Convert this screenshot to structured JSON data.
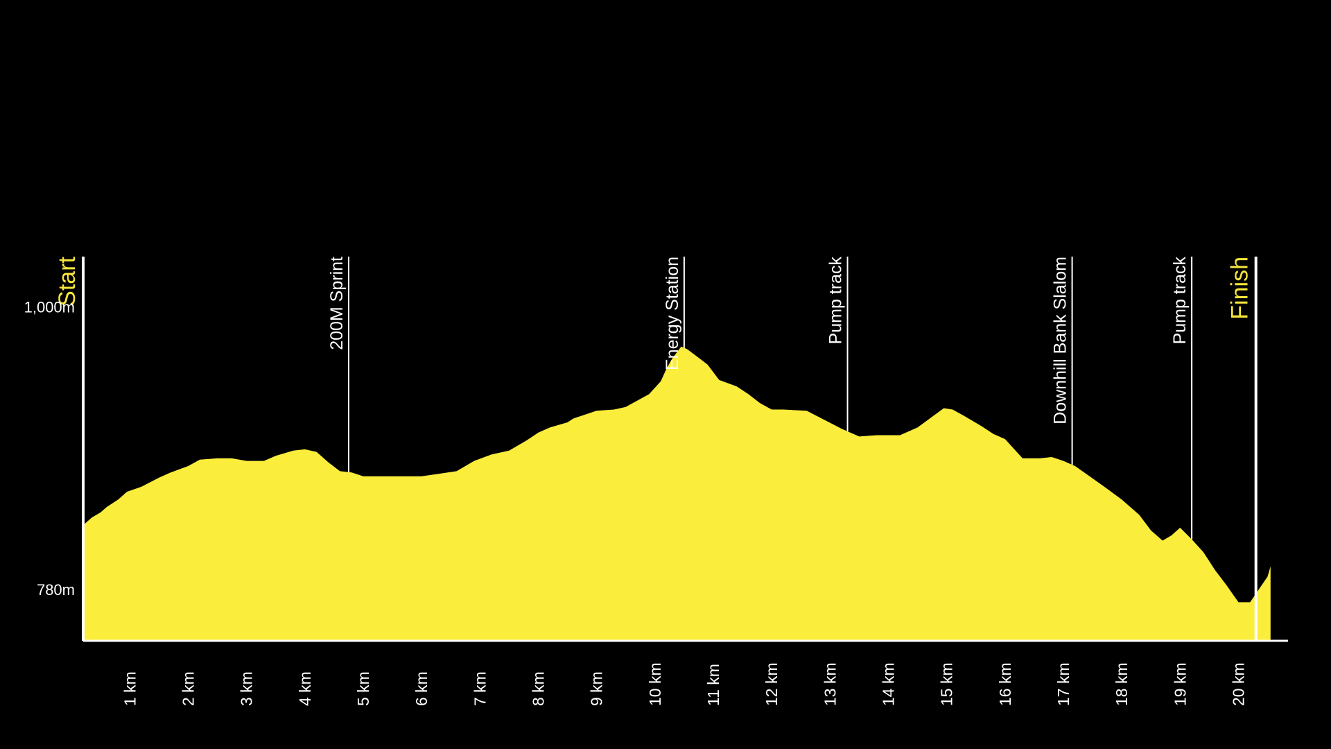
{
  "colors": {
    "background": "#000000",
    "profile_fill": "#fbed3b",
    "marker_line": "#ffffff",
    "endpoint_label": "#f8e63c",
    "text": "#ffffff"
  },
  "chart_data": {
    "type": "area",
    "xlim": [
      0.2,
      20.85
    ],
    "ylim": [
      740,
      1039
    ],
    "y_ticks": [
      {
        "value": 780,
        "label": "780m"
      },
      {
        "value": 1000,
        "label": "1,000m"
      }
    ],
    "x_ticks": [
      {
        "value": 1,
        "label": "1 km"
      },
      {
        "value": 2,
        "label": "2 km"
      },
      {
        "value": 3,
        "label": "3 km"
      },
      {
        "value": 4,
        "label": "4 km"
      },
      {
        "value": 5,
        "label": "5 km"
      },
      {
        "value": 6,
        "label": "6 km"
      },
      {
        "value": 7,
        "label": "7 km"
      },
      {
        "value": 8,
        "label": "8 km"
      },
      {
        "value": 9,
        "label": "9 km"
      },
      {
        "value": 10,
        "label": "10 km"
      },
      {
        "value": 11,
        "label": "11 km"
      },
      {
        "value": 12,
        "label": "12 km"
      },
      {
        "value": 13,
        "label": "13 km"
      },
      {
        "value": 14,
        "label": "14 km"
      },
      {
        "value": 15,
        "label": "15 km"
      },
      {
        "value": 16,
        "label": "16 km"
      },
      {
        "value": 17,
        "label": "17 km"
      },
      {
        "value": 18,
        "label": "18 km"
      },
      {
        "value": 19,
        "label": "19 km"
      },
      {
        "value": 20,
        "label": "20 km"
      }
    ],
    "markers": [
      {
        "x": 0.2,
        "label": "Start",
        "kind": "endpoint"
      },
      {
        "x": 4.75,
        "label": "200M Sprint",
        "kind": "point"
      },
      {
        "x": 10.5,
        "label": "Energy Station",
        "kind": "point"
      },
      {
        "x": 13.3,
        "label": "Pump track",
        "kind": "point"
      },
      {
        "x": 17.15,
        "label": "Downhill Bank Slalom",
        "kind": "point"
      },
      {
        "x": 19.2,
        "label": "Pump track",
        "kind": "point"
      },
      {
        "x": 20.3,
        "label": "Finish",
        "kind": "endpoint"
      }
    ],
    "profile": {
      "x": [
        0.2,
        0.35,
        0.5,
        0.6,
        0.8,
        0.95,
        1.2,
        1.5,
        1.7,
        2.0,
        2.2,
        2.5,
        2.75,
        3.0,
        3.3,
        3.5,
        3.8,
        4.0,
        4.2,
        4.4,
        4.6,
        4.8,
        5.0,
        5.5,
        6.0,
        6.3,
        6.6,
        6.9,
        7.2,
        7.5,
        7.8,
        8.0,
        8.2,
        8.5,
        8.6,
        8.8,
        9.0,
        9.3,
        9.5,
        9.7,
        9.9,
        10.1,
        10.2,
        10.3,
        10.4,
        10.45,
        10.55,
        10.7,
        10.9,
        11.1,
        11.4,
        11.6,
        11.8,
        12.0,
        12.2,
        12.6,
        12.9,
        13.2,
        13.5,
        13.8,
        14.2,
        14.5,
        14.8,
        14.95,
        15.1,
        15.3,
        15.6,
        15.8,
        16.0,
        16.3,
        16.6,
        16.8,
        17.0,
        17.2,
        17.45,
        17.7,
        18.0,
        18.3,
        18.5,
        18.7,
        18.85,
        19.0,
        19.2,
        19.4,
        19.6,
        19.8,
        20.0,
        20.2,
        20.35,
        20.5,
        20.55
      ],
      "y": [
        830,
        836,
        840,
        844,
        850,
        856,
        860,
        867,
        871,
        876,
        881,
        882,
        882,
        880,
        880,
        884,
        888,
        889,
        887,
        879,
        872,
        871,
        868,
        868,
        868,
        870,
        872,
        880,
        885,
        888,
        896,
        902,
        906,
        910,
        913,
        916,
        919,
        920,
        922,
        927,
        932,
        942,
        952,
        960,
        966,
        969,
        967,
        962,
        955,
        943,
        938,
        932,
        925,
        920,
        920,
        919,
        912,
        905,
        899,
        900,
        900,
        906,
        916,
        921,
        920,
        915,
        907,
        901,
        897,
        882,
        882,
        883,
        880,
        876,
        868,
        860,
        850,
        838,
        826,
        818,
        822,
        828,
        819,
        809,
        795,
        783,
        770,
        770,
        780,
        790,
        798
      ]
    }
  }
}
